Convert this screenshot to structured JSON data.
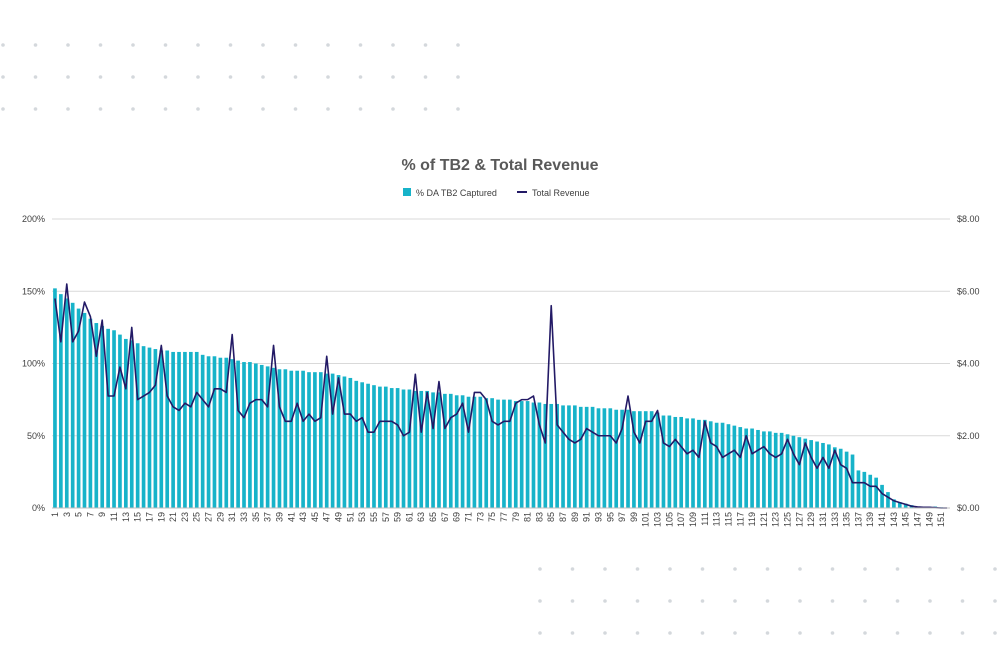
{
  "chart_data": {
    "type": "bar",
    "title": "% of TB2 & Total Revenue",
    "legend_position": "top",
    "grid": true,
    "colors": {
      "bars": "#17b3c9",
      "line": "#231a66"
    },
    "x": [
      1,
      2,
      3,
      4,
      5,
      6,
      7,
      8,
      9,
      10,
      11,
      12,
      13,
      14,
      15,
      16,
      17,
      18,
      19,
      20,
      21,
      22,
      23,
      24,
      25,
      26,
      27,
      28,
      29,
      30,
      31,
      32,
      33,
      34,
      35,
      36,
      37,
      38,
      39,
      40,
      41,
      42,
      43,
      44,
      45,
      46,
      47,
      48,
      49,
      50,
      51,
      52,
      53,
      54,
      55,
      56,
      57,
      58,
      59,
      60,
      61,
      62,
      63,
      64,
      65,
      66,
      67,
      68,
      69,
      70,
      71,
      72,
      73,
      74,
      75,
      76,
      77,
      78,
      79,
      80,
      81,
      82,
      83,
      84,
      85,
      86,
      87,
      88,
      89,
      90,
      91,
      92,
      93,
      94,
      95,
      96,
      97,
      98,
      99,
      100,
      101,
      102,
      103,
      104,
      105,
      106,
      107,
      108,
      109,
      110,
      111,
      112,
      113,
      114,
      115,
      116,
      117,
      118,
      119,
      120,
      121,
      122,
      123,
      124,
      125,
      126,
      127,
      128,
      129,
      130,
      131,
      132,
      133,
      134,
      135,
      136,
      137,
      138,
      139,
      140,
      141,
      142,
      143,
      144,
      145,
      146,
      147,
      148,
      149,
      150,
      151,
      152
    ],
    "x_tick_labels": [
      "1",
      "3",
      "5",
      "7",
      "9",
      "11",
      "13",
      "15",
      "17",
      "19",
      "21",
      "23",
      "25",
      "27",
      "29",
      "31",
      "33",
      "35",
      "37",
      "39",
      "41",
      "43",
      "45",
      "47",
      "49",
      "51",
      "53",
      "55",
      "57",
      "59",
      "61",
      "63",
      "65",
      "67",
      "69",
      "71",
      "73",
      "75",
      "77",
      "79",
      "81",
      "83",
      "85",
      "87",
      "89",
      "91",
      "93",
      "95",
      "97",
      "99",
      "101",
      "103",
      "105",
      "107",
      "109",
      "111",
      "113",
      "115",
      "117",
      "119",
      "121",
      "123",
      "125",
      "127",
      "129",
      "131",
      "133",
      "135",
      "137",
      "139",
      "141",
      "143",
      "145",
      "147",
      "149",
      "151"
    ],
    "y_left": {
      "min": 0,
      "max": 200,
      "ticks": [
        "0%",
        "50%",
        "100%",
        "150%",
        "200%"
      ]
    },
    "y_right": {
      "min": 0,
      "max": 8,
      "ticks": [
        "$0.00",
        "$2.00",
        "$4.00",
        "$6.00",
        "$8.00"
      ]
    },
    "series": [
      {
        "name": "% DA TB2 Captured",
        "type": "bar",
        "axis": "left",
        "values": [
          152,
          148,
          145,
          142,
          138,
          135,
          131,
          128,
          126,
          124,
          123,
          120,
          117,
          116,
          114,
          112,
          111,
          110,
          109,
          109,
          108,
          108,
          108,
          108,
          108,
          106,
          105,
          105,
          104,
          104,
          103,
          102,
          101,
          101,
          100,
          99,
          98,
          97,
          96,
          96,
          95,
          95,
          95,
          94,
          94,
          94,
          93,
          93,
          92,
          91,
          90,
          88,
          87,
          86,
          85,
          84,
          84,
          83,
          83,
          82,
          82,
          81,
          81,
          81,
          80,
          80,
          79,
          79,
          78,
          78,
          77,
          77,
          77,
          76,
          76,
          75,
          75,
          75,
          74,
          74,
          74,
          73,
          73,
          72,
          72,
          72,
          71,
          71,
          71,
          70,
          70,
          70,
          69,
          69,
          69,
          68,
          68,
          68,
          67,
          67,
          67,
          67,
          66,
          64,
          64,
          63,
          63,
          62,
          62,
          61,
          61,
          60,
          59,
          59,
          58,
          57,
          56,
          55,
          55,
          54,
          53,
          53,
          52,
          52,
          51,
          50,
          49,
          48,
          47,
          46,
          45,
          44,
          42,
          41,
          39,
          37,
          26,
          25,
          23,
          21,
          16,
          11,
          6,
          4,
          3,
          2,
          1,
          1,
          1,
          1,
          0.5,
          0.3
        ]
      },
      {
        "name": "Total Revenue",
        "type": "line",
        "axis": "right",
        "values": [
          5.8,
          4.6,
          6.2,
          4.6,
          4.9,
          5.7,
          5.3,
          4.2,
          5.2,
          3.1,
          3.1,
          3.9,
          3.3,
          5.0,
          3.0,
          3.1,
          3.2,
          3.4,
          4.5,
          3.1,
          2.8,
          2.7,
          2.9,
          2.8,
          3.2,
          3.0,
          2.8,
          3.3,
          3.3,
          3.2,
          4.8,
          2.7,
          2.5,
          2.9,
          3.0,
          3.0,
          2.8,
          4.5,
          2.8,
          2.4,
          2.4,
          2.9,
          2.4,
          2.6,
          2.4,
          2.5,
          4.2,
          2.6,
          3.6,
          2.6,
          2.6,
          2.4,
          2.5,
          2.1,
          2.1,
          2.4,
          2.4,
          2.4,
          2.3,
          2.0,
          2.1,
          3.7,
          2.1,
          3.2,
          2.2,
          3.5,
          2.2,
          2.5,
          2.6,
          2.9,
          2.1,
          3.2,
          3.2,
          3.0,
          2.4,
          2.3,
          2.4,
          2.4,
          2.9,
          3.0,
          3.0,
          3.1,
          2.3,
          1.8,
          5.6,
          2.3,
          2.1,
          1.9,
          1.8,
          1.9,
          2.2,
          2.1,
          2.0,
          2.0,
          2.0,
          1.8,
          2.2,
          3.1,
          2.1,
          1.8,
          2.4,
          2.4,
          2.7,
          1.8,
          1.7,
          1.9,
          1.7,
          1.5,
          1.6,
          1.4,
          2.4,
          1.8,
          1.7,
          1.4,
          1.5,
          1.6,
          1.4,
          2.0,
          1.5,
          1.6,
          1.7,
          1.5,
          1.4,
          1.5,
          1.9,
          1.5,
          1.2,
          1.8,
          1.4,
          1.1,
          1.4,
          1.1,
          1.6,
          1.2,
          1.1,
          0.7,
          0.7,
          0.7,
          0.6,
          0.6,
          0.4,
          0.3,
          0.2,
          0.15,
          0.1,
          0.05,
          0.03,
          0.02,
          0.02,
          0.01,
          0,
          0
        ]
      }
    ]
  }
}
